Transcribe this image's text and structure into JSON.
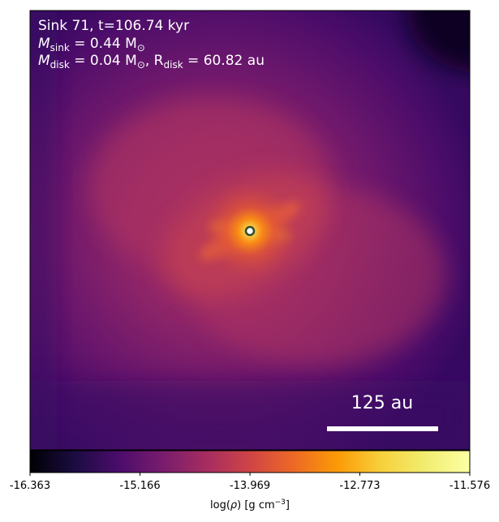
{
  "chart_data": {
    "type": "heatmap",
    "colormap": "inferno",
    "annotations": {
      "line1": "Sink 71, t=106.74 kyr",
      "msink_symbol": "M",
      "msink_sub": "sink",
      "msink_value": " = 0.44 M",
      "msink_unit_sub": "⊙",
      "mdisk_symbol": "M",
      "mdisk_sub": "disk",
      "mdisk_value": " = 0.04 M",
      "mdisk_unit_sub": "⊙",
      "rdisk_sep": ", R",
      "rdisk_sub": "disk",
      "rdisk_value": " = 60.82 au"
    },
    "scale_bar": {
      "label": "125 au",
      "length_au": 125
    },
    "sink_marker": {
      "shape": "circle",
      "color": "#ffffff",
      "edge_color": "#2e4a2e"
    },
    "colorbar": {
      "label_prefix": "log(",
      "label_rho": "ρ",
      "label_suffix": ") [g cm",
      "label_exp": "−3",
      "label_end": "]",
      "vmin": -16.363,
      "vmax": -11.576,
      "ticks": [
        "-16.363",
        "-15.166",
        "-13.969",
        "-12.773",
        "-11.576"
      ],
      "tick_values": [
        -16.363,
        -15.166,
        -13.969,
        -12.773,
        -11.576
      ]
    }
  }
}
